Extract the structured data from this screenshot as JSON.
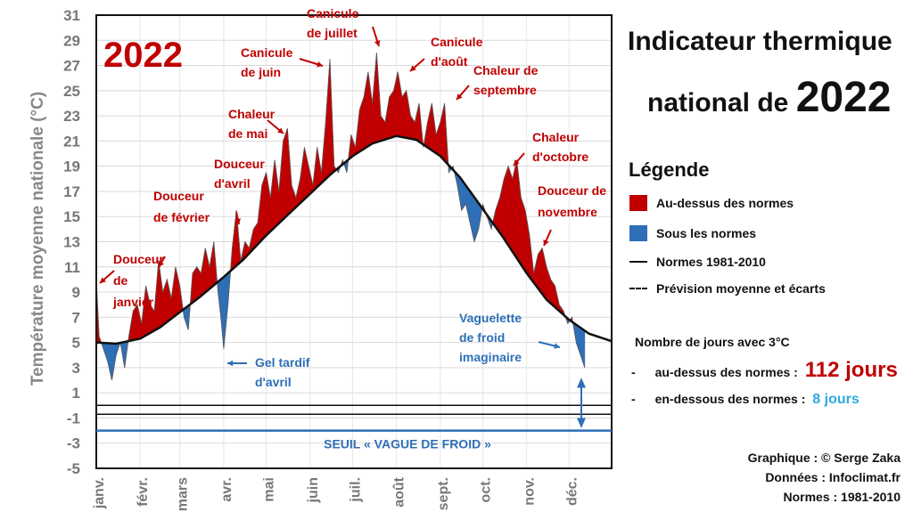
{
  "title": {
    "line1": "Indicateur thermique",
    "line2_prefix": "national de",
    "year": "2022"
  },
  "legend": {
    "title": "Légende",
    "items": [
      {
        "label": "Au-dessus des normes",
        "kind": "swatch",
        "color": "#c00000"
      },
      {
        "label": "Sous les normes",
        "kind": "swatch",
        "color": "#2e6fb7"
      },
      {
        "label": "Normes 1981-2010",
        "kind": "line",
        "color": "#111111"
      },
      {
        "label": "Prévision moyenne et écarts",
        "kind": "dash",
        "color": "#111111"
      }
    ]
  },
  "stats": {
    "heading": "Nombre de jours avec 3°C",
    "above_label": "au-dessus des normes :",
    "above_value": "112 jours",
    "below_label": "en-dessous des normes :",
    "below_value": "8 jours",
    "bullet": "-"
  },
  "credits": [
    "Graphique : © Serge Zaka",
    "Données : Infoclimat.fr",
    "Normes : 1981-2010"
  ],
  "chart_data": {
    "type": "area",
    "year_label": "2022",
    "ylabel": "Température moyenne nationale (°C)",
    "ylim": [
      -5,
      31
    ],
    "yticks": [
      "31",
      "29",
      "27",
      "25",
      "23",
      "21",
      "19",
      "17",
      "15",
      "13",
      "11",
      "9",
      "7",
      "5",
      "3",
      "1",
      "-1",
      "-3",
      "-5"
    ],
    "yticks_values": [
      31,
      29,
      27,
      25,
      23,
      21,
      19,
      17,
      15,
      13,
      11,
      9,
      7,
      5,
      3,
      1,
      -1,
      -3,
      -5
    ],
    "months": [
      "janv.",
      "févr.",
      "mars",
      "avr.",
      "mai",
      "juin",
      "juil.",
      "août",
      "sept.",
      "oct.",
      "nov.",
      "déc."
    ],
    "grid": true,
    "threshold": {
      "value": -2,
      "label": "SEUIL « VAGUE DE FROID »",
      "color": "#2e6fb7"
    },
    "colors": {
      "above": "#c00000",
      "below": "#2e6fb7",
      "norm": "#111111"
    },
    "norm_1981_2010": {
      "day": [
        1,
        15,
        32,
        46,
        60,
        74,
        91,
        105,
        121,
        135,
        152,
        166,
        182,
        196,
        213,
        227,
        244,
        258,
        274,
        288,
        305,
        319,
        335,
        349,
        365
      ],
      "value": [
        5.0,
        4.9,
        5.3,
        6.2,
        7.4,
        8.6,
        10.2,
        11.6,
        13.5,
        15.0,
        16.8,
        18.3,
        19.8,
        20.8,
        21.4,
        21.1,
        19.8,
        18.1,
        15.6,
        13.4,
        10.5,
        8.4,
        6.8,
        5.7,
        5.1
      ]
    },
    "observed_2022": {
      "day": [
        1,
        3,
        6,
        9,
        12,
        15,
        18,
        21,
        24,
        27,
        30,
        33,
        36,
        39,
        42,
        45,
        48,
        51,
        54,
        57,
        60,
        63,
        66,
        69,
        72,
        75,
        78,
        81,
        84,
        87,
        89,
        91,
        94,
        97,
        100,
        103,
        106,
        109,
        112,
        115,
        118,
        121,
        124,
        127,
        130,
        133,
        136,
        139,
        142,
        145,
        148,
        151,
        154,
        157,
        160,
        163,
        166,
        169,
        172,
        175,
        178,
        181,
        184,
        187,
        190,
        193,
        196,
        199,
        202,
        205,
        208,
        211,
        214,
        217,
        220,
        223,
        226,
        229,
        232,
        235,
        238,
        241,
        244,
        247,
        250,
        253,
        256,
        259,
        262,
        265,
        268,
        271,
        274,
        277,
        280,
        283,
        286,
        289,
        292,
        295,
        298,
        301,
        304,
        307,
        310,
        313,
        316,
        319,
        322,
        325,
        328,
        331,
        334,
        337,
        340,
        343,
        346
      ],
      "value": [
        10.0,
        5.5,
        4.5,
        3.5,
        2.0,
        4.0,
        5.0,
        3.0,
        5.5,
        7.5,
        8.0,
        6.5,
        9.5,
        8.0,
        7.5,
        11.5,
        9.0,
        10.0,
        8.5,
        11.0,
        9.5,
        7.0,
        6.0,
        10.5,
        11.0,
        10.5,
        12.5,
        11.0,
        13.0,
        9.0,
        7.0,
        4.5,
        8.0,
        12.5,
        15.5,
        11.5,
        13.0,
        12.5,
        14.0,
        14.5,
        17.5,
        18.5,
        16.5,
        19.5,
        17.0,
        21.0,
        22.0,
        17.5,
        16.5,
        18.0,
        20.5,
        19.0,
        17.5,
        20.5,
        18.5,
        22.5,
        27.5,
        19.0,
        18.5,
        19.5,
        18.5,
        21.5,
        20.5,
        23.5,
        24.5,
        26.5,
        24.0,
        28.0,
        23.0,
        22.5,
        24.5,
        25.0,
        26.5,
        24.5,
        25.0,
        23.0,
        22.5,
        24.0,
        20.5,
        22.5,
        24.0,
        21.5,
        22.5,
        24.0,
        18.5,
        19.0,
        17.5,
        15.5,
        16.0,
        14.5,
        13.0,
        14.0,
        16.0,
        15.0,
        14.0,
        15.5,
        16.5,
        18.0,
        19.0,
        18.0,
        19.5,
        16.5,
        15.5,
        13.5,
        10.5,
        12.0,
        12.5,
        11.0,
        10.0,
        9.5,
        8.0,
        7.5,
        6.5,
        7.0,
        5.0,
        4.0,
        3.0
      ]
    },
    "annotations": [
      {
        "lines": [
          "Douceur",
          "de",
          "janvier"
        ],
        "color": "#c00000"
      },
      {
        "lines": [
          "Douceur",
          "de février"
        ],
        "color": "#c00000"
      },
      {
        "lines": [
          "Douceur",
          "d'avril"
        ],
        "color": "#c00000"
      },
      {
        "lines": [
          "Chaleur",
          "de mai"
        ],
        "color": "#c00000"
      },
      {
        "lines": [
          "Canicule",
          "de juin"
        ],
        "color": "#c00000"
      },
      {
        "lines": [
          "Canicule",
          "de juillet"
        ],
        "color": "#c00000"
      },
      {
        "lines": [
          "Canicule",
          "d'août"
        ],
        "color": "#c00000"
      },
      {
        "lines": [
          "Chaleur de",
          "septembre"
        ],
        "color": "#c00000"
      },
      {
        "lines": [
          "Chaleur",
          "d'octobre"
        ],
        "color": "#c00000"
      },
      {
        "lines": [
          "Douceur de",
          "novembre"
        ],
        "color": "#c00000"
      },
      {
        "lines": [
          "Gel tardif",
          "d'avril"
        ],
        "color": "#2e6fb7"
      },
      {
        "lines": [
          "Vaguelette",
          "de froid",
          "imaginaire"
        ],
        "color": "#2e6fb7"
      }
    ]
  }
}
